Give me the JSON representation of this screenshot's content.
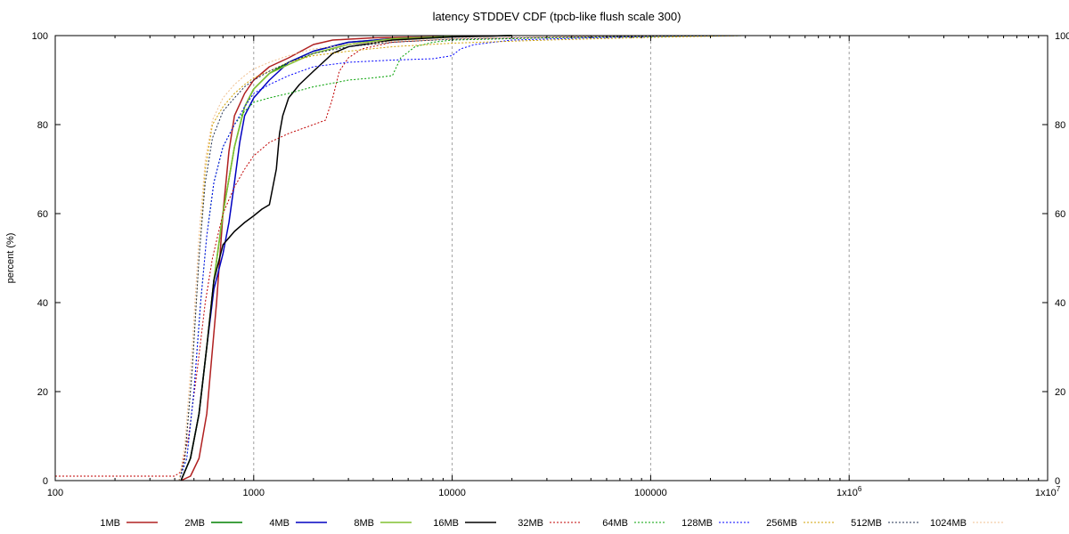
{
  "chart_data": {
    "type": "line",
    "title": "latency STDDEV CDF (tpcb-like flush scale 300)",
    "xlabel": "",
    "ylabel": "percent (%)",
    "x_scale": "log",
    "xlim": [
      100,
      10000000
    ],
    "ylim": [
      0,
      100
    ],
    "grid": "vertical dashed at major x ticks",
    "legend_position": "bottom",
    "x_tick_labels": [
      "100",
      "1000",
      "10000",
      "100000",
      "1x10^6",
      "1x10^7"
    ],
    "y_tick_labels": [
      "0",
      "20",
      "40",
      "60",
      "80",
      "100"
    ],
    "series": [
      {
        "name": "1MB",
        "color": "#b02020",
        "style": "solid",
        "x": [
          430,
          480,
          530,
          580,
          650,
          700,
          750,
          800,
          900,
          1000,
          1200,
          1500,
          2000,
          2500,
          4000,
          10000,
          20000
        ],
        "y": [
          0,
          1,
          5,
          15,
          40,
          60,
          74,
          82,
          87,
          90,
          93,
          95,
          98,
          99,
          99.5,
          99.8,
          100
        ]
      },
      {
        "name": "2MB",
        "color": "#008000",
        "style": "solid",
        "x": [
          430,
          480,
          530,
          580,
          630,
          700,
          800,
          900,
          1000,
          1200,
          1500,
          2000,
          3000,
          5000,
          10000,
          20000
        ],
        "y": [
          0,
          5,
          15,
          30,
          45,
          60,
          75,
          84,
          88,
          91.5,
          94,
          96.5,
          98.5,
          99.3,
          99.8,
          100
        ]
      },
      {
        "name": "4MB",
        "color": "#0000c0",
        "style": "solid",
        "x": [
          430,
          480,
          530,
          580,
          630,
          700,
          750,
          800,
          850,
          900,
          1000,
          1200,
          1500,
          2000,
          3000,
          5000,
          10000,
          20000
        ],
        "y": [
          0,
          5,
          15,
          30,
          43,
          51,
          58,
          67,
          76,
          82,
          86,
          90,
          94,
          96.5,
          98.5,
          99.3,
          99.8,
          100
        ]
      },
      {
        "name": "8MB",
        "color": "#80c030",
        "style": "solid",
        "x": [
          430,
          480,
          530,
          580,
          630,
          700,
          800,
          900,
          1000,
          1200,
          1500,
          2000,
          3000,
          5000,
          10000,
          20000
        ],
        "y": [
          0,
          5,
          15,
          30,
          45,
          60,
          75,
          84,
          88,
          91.5,
          93.5,
          96,
          98,
          99.3,
          99.8,
          100
        ]
      },
      {
        "name": "16MB",
        "color": "#000000",
        "style": "solid",
        "x": [
          430,
          480,
          530,
          580,
          630,
          700,
          800,
          900,
          1000,
          1100,
          1200,
          1300,
          1350,
          1400,
          1500,
          1700,
          2000,
          2500,
          3000,
          5000,
          10000,
          20000
        ],
        "y": [
          0,
          5,
          15,
          30,
          45,
          53,
          56,
          58,
          59.5,
          61,
          62,
          70,
          78,
          82,
          86,
          89,
          92,
          96,
          97.5,
          99,
          99.7,
          100
        ]
      },
      {
        "name": "32MB",
        "color": "#c00000",
        "style": "dotted",
        "x": [
          100,
          400,
          430,
          470,
          520,
          570,
          620,
          700,
          800,
          900,
          1000,
          1200,
          1500,
          2000,
          2300,
          2500,
          2700,
          3000,
          3500,
          5000,
          10000,
          30000,
          100000,
          300000
        ],
        "y": [
          1,
          1,
          2,
          10,
          25,
          40,
          50,
          60,
          66,
          70,
          73,
          76,
          78,
          80,
          81,
          86,
          92,
          95,
          97,
          98.5,
          99.3,
          99.7,
          99.9,
          100
        ]
      },
      {
        "name": "64MB",
        "color": "#00a000",
        "style": "dotted",
        "x": [
          420,
          460,
          500,
          540,
          580,
          630,
          700,
          800,
          900,
          1000,
          1200,
          1500,
          2000,
          3000,
          4000,
          5000,
          5500,
          6500,
          8000,
          10000,
          30000,
          100000,
          300000
        ],
        "y": [
          0,
          5,
          20,
          40,
          55,
          67,
          75,
          80,
          83,
          85,
          86,
          87,
          88.5,
          90,
          90.5,
          91,
          95,
          97.5,
          98.5,
          99,
          99.5,
          99.8,
          100
        ]
      },
      {
        "name": "128MB",
        "color": "#0000ff",
        "style": "dotted",
        "x": [
          420,
          460,
          500,
          540,
          580,
          630,
          700,
          800,
          900,
          1000,
          1200,
          1500,
          2000,
          3000,
          5000,
          8000,
          10000,
          11000,
          13000,
          20000,
          50000,
          100000,
          300000
        ],
        "y": [
          0,
          5,
          20,
          40,
          55,
          67,
          75,
          80,
          84,
          87,
          89,
          91,
          93,
          94,
          94.5,
          94.8,
          95.5,
          97,
          98,
          99,
          99.5,
          99.8,
          100
        ]
      },
      {
        "name": "256MB",
        "color": "#d0a000",
        "style": "dotted",
        "x": [
          420,
          450,
          490,
          530,
          570,
          620,
          700,
          800,
          900,
          1000,
          1200,
          1500,
          2000,
          3000,
          5000,
          10000,
          30000,
          100000,
          300000
        ],
        "y": [
          0,
          5,
          25,
          50,
          70,
          80,
          84,
          87,
          89,
          90.5,
          92,
          94,
          95.5,
          96.5,
          97.5,
          98.3,
          99,
          99.6,
          100
        ]
      },
      {
        "name": "512MB",
        "color": "#203050",
        "style": "dotted",
        "x": [
          420,
          450,
          490,
          530,
          570,
          620,
          700,
          800,
          900,
          1000,
          1200,
          1500,
          2000,
          3000,
          5000,
          10000,
          30000,
          100000,
          300000
        ],
        "y": [
          0,
          5,
          25,
          50,
          67,
          77,
          83,
          86,
          88.5,
          90,
          92,
          94,
          96,
          97.5,
          98.5,
          99.2,
          99.6,
          99.9,
          100
        ]
      },
      {
        "name": "1024MB",
        "color": "#f0c090",
        "style": "dotted",
        "x": [
          420,
          450,
          490,
          530,
          570,
          620,
          700,
          800,
          900,
          1000,
          1200,
          1500,
          2000,
          3000,
          5000,
          10000,
          30000,
          100000,
          300000
        ],
        "y": [
          0,
          8,
          30,
          55,
          72,
          81,
          86,
          89,
          91,
          92.5,
          94,
          95.5,
          97,
          98,
          98.7,
          99.3,
          99.7,
          99.9,
          100
        ]
      }
    ]
  }
}
